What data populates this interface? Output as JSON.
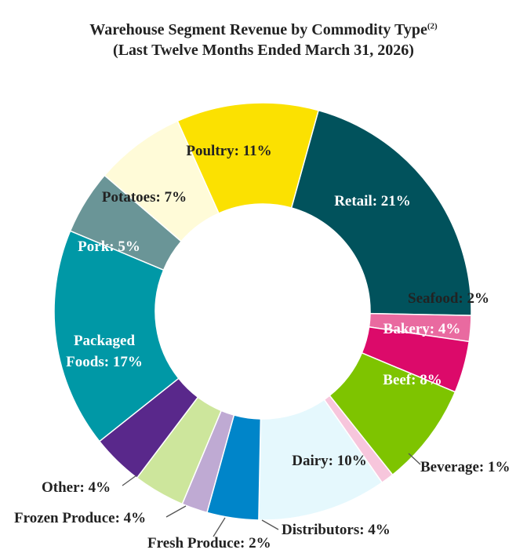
{
  "chart_data": {
    "type": "pie",
    "style": "donut",
    "title": "Warehouse Segment Revenue by Commodity Type",
    "title_superscript": "(2)",
    "subtitle": "(Last Twelve Months Ended March 31, 2026)",
    "unit": "%",
    "slices": [
      {
        "label": "Retail",
        "display": "Retail: 21%",
        "value": 21,
        "color": "#01525c"
      },
      {
        "label": "Seafood",
        "display": "Seafood: 2%",
        "value": 2,
        "color": "#e96aa0"
      },
      {
        "label": "Bakery",
        "display": "Bakery: 4%",
        "value": 4,
        "color": "#dc0a6a"
      },
      {
        "label": "Beef",
        "display": "Beef: 8%",
        "value": 8,
        "color": "#7ec400"
      },
      {
        "label": "Beverage",
        "display": "Beverage: 1%",
        "value": 1,
        "color": "#f7c6dc"
      },
      {
        "label": "Dairy",
        "display": "Dairy: 10%",
        "value": 10,
        "color": "#e5f8fd"
      },
      {
        "label": "Distributors",
        "display": "Distributors: 4%",
        "value": 4,
        "color": "#0085c9"
      },
      {
        "label": "Fresh Produce",
        "display": "Fresh Produce: 2%",
        "value": 2,
        "color": "#bfaad3"
      },
      {
        "label": "Frozen Produce",
        "display": "Frozen Produce: 4%",
        "value": 4,
        "color": "#cde69c"
      },
      {
        "label": "Other",
        "display": "Other: 4%",
        "value": 4,
        "color": "#59288b"
      },
      {
        "label": "Packaged Foods",
        "display": "Packaged Foods: 17%",
        "value": 17,
        "color": "#0098a6"
      },
      {
        "label": "Pork",
        "display": "Pork: 5%",
        "value": 5,
        "color": "#6a9597"
      },
      {
        "label": "Potatoes",
        "display": "Potatoes: 7%",
        "value": 7,
        "color": "#fffbd8"
      },
      {
        "label": "Poultry",
        "display": "Poultry: 11%",
        "value": 11,
        "color": "#fbe101"
      }
    ]
  }
}
